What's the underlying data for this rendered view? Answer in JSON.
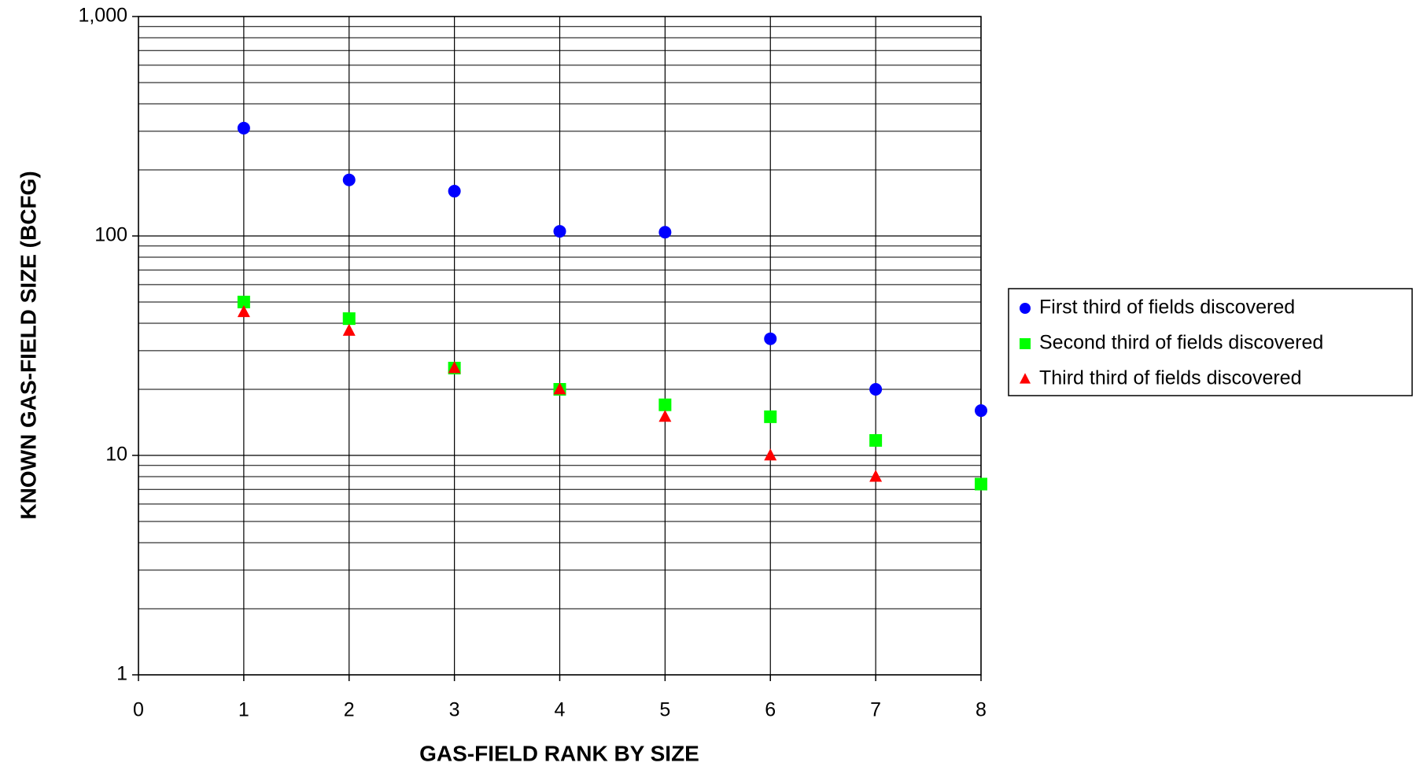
{
  "chart_data": {
    "type": "scatter",
    "log_y": true,
    "grid": true,
    "legend": "right",
    "xlabel": "GAS-FIELD RANK BY SIZE",
    "ylabel": "KNOWN GAS-FIELD SIZE (BCFG)",
    "x": [
      1,
      2,
      3,
      4,
      5,
      6,
      7,
      8
    ],
    "xlim": [
      0,
      8
    ],
    "xticks": [
      0,
      1,
      2,
      3,
      4,
      5,
      6,
      7,
      8
    ],
    "ylim": [
      1,
      1000
    ],
    "yticks": [
      1,
      10,
      100,
      {
        "value": 1000,
        "label": "1,000"
      }
    ],
    "series": [
      {
        "name": "First third of fields discovered",
        "color": "#0000ff",
        "marker": "circle",
        "values": [
          310,
          180,
          160,
          105,
          104,
          34,
          20,
          16
        ]
      },
      {
        "name": "Second third of fields discovered",
        "color": "#00ff00",
        "marker": "square",
        "values": [
          50,
          42,
          25,
          20,
          17,
          15,
          11.7,
          7.4
        ]
      },
      {
        "name": "Third third of fields discovered",
        "color": "#ff0000",
        "marker": "triangle",
        "values": [
          45,
          37,
          25,
          20,
          15,
          10,
          8,
          null
        ]
      }
    ]
  }
}
